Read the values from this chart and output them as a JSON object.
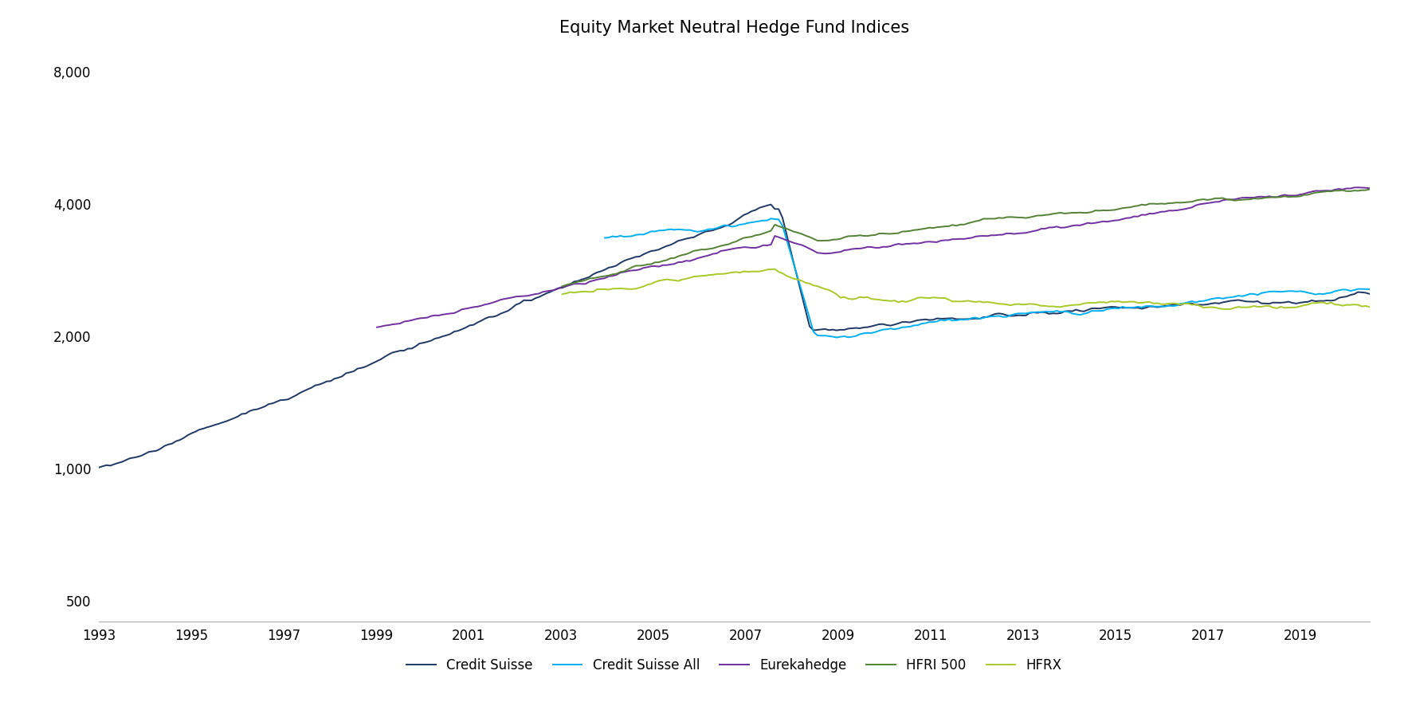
{
  "title": "Equity Market Neutral Hedge Fund Indices",
  "title_fontsize": 15,
  "background_color": "#ffffff",
  "yticks": [
    500,
    1000,
    2000,
    4000,
    8000
  ],
  "ytick_labels": [
    "500",
    "1,000",
    "2,000",
    "4,000",
    "8,000"
  ],
  "xticks": [
    1993,
    1995,
    1997,
    1999,
    2001,
    2003,
    2005,
    2007,
    2009,
    2011,
    2013,
    2015,
    2017,
    2019
  ],
  "ylim_log": [
    450,
    9000
  ],
  "xlim": [
    1993.0,
    2020.5
  ],
  "series": {
    "Credit Suisse": {
      "color": "#1f3864",
      "linewidth": 1.4
    },
    "Credit Suisse All": {
      "color": "#00b0f0",
      "linewidth": 1.4
    },
    "Eurekahedge": {
      "color": "#7030a0",
      "linewidth": 1.4
    },
    "HFRI 500": {
      "color": "#548235",
      "linewidth": 1.4
    },
    "HFRX": {
      "color": "#a9c92a",
      "linewidth": 1.4
    }
  },
  "legend_order": [
    "Credit Suisse",
    "Credit Suisse All",
    "Eurekahedge",
    "HFRI 500",
    "HFRX"
  ]
}
